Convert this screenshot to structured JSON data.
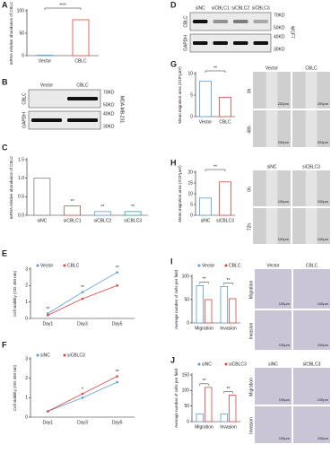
{
  "panel_labels": [
    "A",
    "B",
    "C",
    "D",
    "E",
    "F",
    "G",
    "H",
    "I",
    "J"
  ],
  "chart_data": [
    {
      "type": "bar",
      "ylabel": "mRNA relative abundance of CBLC",
      "categories": [
        "Vector",
        "CBLC"
      ],
      "values": [
        1,
        80
      ],
      "colors": [
        "#5b9bd5",
        "#e0463c"
      ],
      "ylim": [
        0,
        100
      ],
      "yticks": [
        0,
        50,
        100
      ],
      "bracket_label": "****"
    },
    {
      "type": "bar",
      "ylabel": "mRNA relative abundance of CBLC",
      "categories": [
        "siNC",
        "siCBLC1",
        "siCBLC2",
        "siCBLC3"
      ],
      "values": [
        1.0,
        0.25,
        0.1,
        0.1
      ],
      "colors": [
        "#808080",
        "#e0463c",
        "#5b9bd5",
        "#2ca58d"
      ],
      "ylim": [
        0,
        1.5
      ],
      "yticks": [
        {
          "value": 0,
          "label": "0.0"
        },
        0.5,
        {
          "value": 1,
          "label": "1.0"
        },
        1.5
      ],
      "annotations": [
        null,
        "**",
        "**",
        "**"
      ]
    },
    {
      "type": "line",
      "ylabel": "Cell viability (OD 450 nm)",
      "categories": [
        "Day1",
        "Day3",
        "Day5"
      ],
      "series": [
        {
          "name": "Vector",
          "color": "#5b9bd5",
          "values": [
            0.3,
            1.6,
            2.8
          ]
        },
        {
          "name": "CBLC",
          "color": "#e0463c",
          "values": [
            0.2,
            1.2,
            2.0
          ]
        }
      ],
      "ylim": [
        0,
        3
      ],
      "yticks": [
        0,
        1,
        2,
        3
      ],
      "annotations": [
        "**",
        "**",
        "**"
      ]
    },
    {
      "type": "line",
      "ylabel": "Cell viability (OD 450 nm)",
      "categories": [
        "Day1",
        "Day3",
        "Day5"
      ],
      "series": [
        {
          "name": "siNC",
          "color": "#5b9bd5",
          "values": [
            0.3,
            1.0,
            1.8
          ]
        },
        {
          "name": "siCBLC3",
          "color": "#e0463c",
          "values": [
            0.3,
            1.2,
            2.1
          ]
        }
      ],
      "ylim": [
        0,
        3
      ],
      "yticks": [
        0,
        1,
        2,
        3
      ],
      "annotations": [
        null,
        "*",
        "**"
      ]
    },
    {
      "type": "bar",
      "ylabel": "Mean migration area (X10⁵μm²)",
      "categories": [
        "Vector",
        "CBLC"
      ],
      "values": [
        8.2,
        4.5
      ],
      "colors": [
        "#5b9bd5",
        "#e0463c"
      ],
      "ylim": [
        0,
        10
      ],
      "yticks": [
        0,
        5,
        10
      ],
      "bracket_label": "**"
    },
    {
      "type": "bar",
      "ylabel": "Mean migration area (X10⁵μm²)",
      "categories": [
        "siNC",
        "siCBLC3"
      ],
      "values": [
        8,
        15.5
      ],
      "colors": [
        "#5b9bd5",
        "#e0463c"
      ],
      "ylim": [
        0,
        20
      ],
      "yticks": [
        0,
        5,
        10,
        15,
        20
      ],
      "bracket_label": "**"
    },
    {
      "type": "bar",
      "ylabel": "Average number of cells per field",
      "categories": [
        "Migration",
        "Invasion"
      ],
      "series": [
        {
          "name": "Vector",
          "color": "#5b9bd5",
          "values": [
            80,
            78
          ]
        },
        {
          "name": "CBLC",
          "color": "#e0463c",
          "values": [
            50,
            52
          ]
        }
      ],
      "ylim": [
        0,
        100
      ],
      "yticks": [
        0,
        50,
        100
      ],
      "annotations": [
        "**",
        "**"
      ]
    },
    {
      "type": "bar",
      "ylabel": "Average number of cells per field",
      "categories": [
        "Migration",
        "Invasion"
      ],
      "series": [
        {
          "name": "siNC",
          "color": "#5b9bd5",
          "values": [
            25,
            25
          ]
        },
        {
          "name": "siCBLC3",
          "color": "#e0463c",
          "values": [
            110,
            85
          ]
        }
      ],
      "ylim": [
        0,
        150
      ],
      "yticks": [
        0,
        50,
        100,
        150
      ],
      "annotations": [
        "**",
        "**"
      ]
    }
  ],
  "blots": [
    {
      "lanes": [
        "Vector",
        "CBLC"
      ],
      "rows": [
        {
          "name": "CBLC",
          "markers": [
            "70KD",
            "50KD"
          ]
        },
        {
          "name": "GAPDH",
          "markers": [
            "40KD",
            "30KD"
          ]
        }
      ],
      "cell_line": "MDA-MB-231"
    },
    {
      "lanes": [
        "siNC",
        "siCBLC1",
        "siCBLC2",
        "siCBLC3"
      ],
      "rows": [
        {
          "name": "CBLC",
          "markers": [
            "70KD",
            "50KD"
          ]
        },
        {
          "name": "GAPDH",
          "markers": [
            "40KD",
            "30KD"
          ]
        }
      ],
      "cell_line": "MCF7"
    }
  ],
  "micrographs": [
    {
      "columns": [
        "Vector",
        "CBLC"
      ],
      "rows": [
        "0h",
        "48h"
      ],
      "scale": "200μm"
    },
    {
      "columns": [
        "siNC",
        "siCBLC3"
      ],
      "rows": [
        "0h",
        "72h"
      ],
      "scale": "100μm"
    },
    {
      "columns": [
        "Vector",
        "CBLC"
      ],
      "rows": [
        "Migration",
        "Invasion"
      ],
      "scale": "100μm"
    },
    {
      "columns": [
        "siNC",
        "siCBLC3"
      ],
      "rows": [
        "Migration",
        "Invasion"
      ],
      "scale": "100μm"
    }
  ]
}
